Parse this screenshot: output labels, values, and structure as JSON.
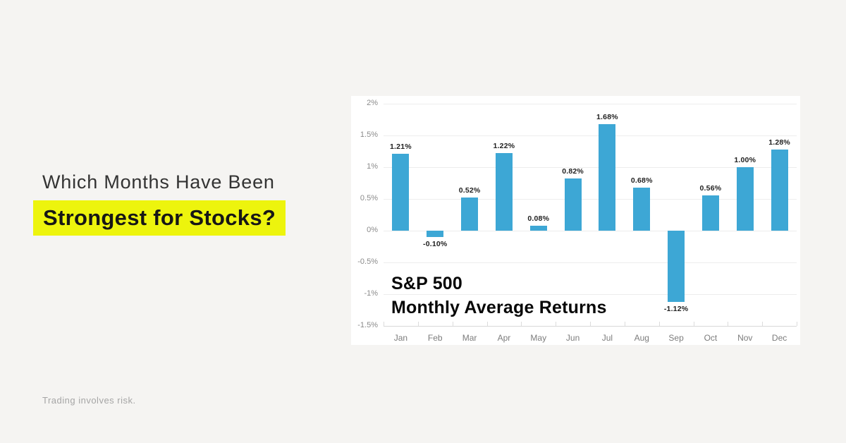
{
  "headline": {
    "line1": "Which Months Have Been",
    "line2": "Strongest for Stocks?"
  },
  "footer": {
    "disclaimer": "Trading involves risk."
  },
  "colors": {
    "page_background": "#f5f4f2",
    "chart_background": "#ffffff",
    "highlight_yellow": "#edf40d",
    "bar_blue": "#3da7d5"
  },
  "chart_data": {
    "type": "bar",
    "title": "S&P 500 Monthly Average Returns",
    "title_line1": "S&P 500",
    "title_line2": "Monthly Average Returns",
    "xlabel": "",
    "ylabel": "",
    "categories": [
      "Jan",
      "Feb",
      "Mar",
      "Apr",
      "May",
      "Jun",
      "Jul",
      "Aug",
      "Sep",
      "Oct",
      "Nov",
      "Dec"
    ],
    "values": [
      1.21,
      -0.1,
      0.52,
      1.22,
      0.08,
      0.82,
      1.68,
      0.68,
      -1.12,
      0.56,
      1.0,
      1.28
    ],
    "value_labels": [
      "1.21%",
      "-0.10%",
      "0.52%",
      "1.22%",
      "0.08%",
      "0.82%",
      "1.68%",
      "0.68%",
      "-1.12%",
      "0.56%",
      "1.00%",
      "1.28%"
    ],
    "yticks": [
      2,
      1.5,
      1,
      0.5,
      0,
      -0.5,
      -1,
      -1.5
    ],
    "ytick_labels": [
      "2%",
      "1.5%",
      "1%",
      "0.5%",
      "0%",
      "-0.5%",
      "-1%",
      "-1.5%"
    ],
    "ylim": [
      -1.5,
      2
    ],
    "bar_color": "#3da7d5",
    "grid": true,
    "legend": false
  }
}
